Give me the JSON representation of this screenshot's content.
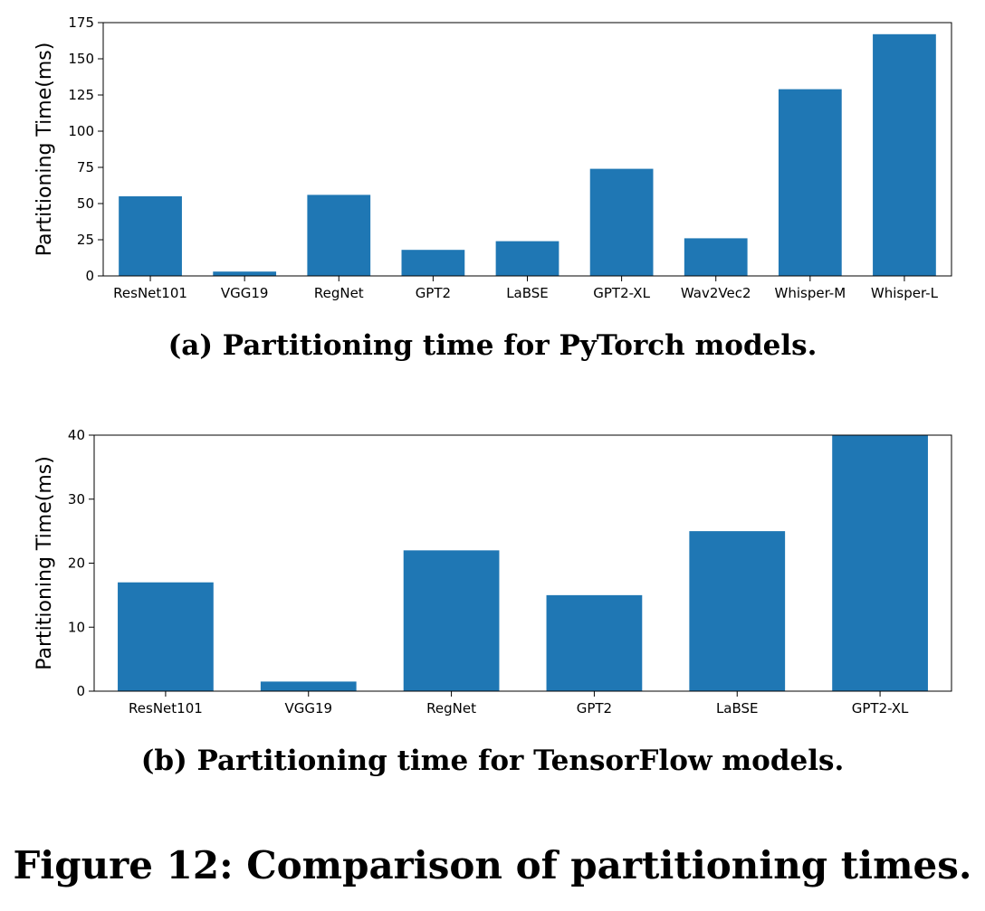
{
  "chart_data": [
    {
      "type": "bar",
      "categories": [
        "ResNet101",
        "VGG19",
        "RegNet",
        "GPT2",
        "LaBSE",
        "GPT2-XL",
        "Wav2Vec2",
        "Whisper-M",
        "Whisper-L"
      ],
      "values": [
        55,
        3,
        56,
        18,
        24,
        74,
        26,
        129,
        167
      ],
      "ylabel": "Partitioning Time(ms)",
      "ylim": [
        0,
        175
      ],
      "yticks": [
        0,
        25,
        50,
        75,
        100,
        125,
        150,
        175
      ],
      "grid": false,
      "color": "#1f77b4"
    },
    {
      "type": "bar",
      "categories": [
        "ResNet101",
        "VGG19",
        "RegNet",
        "GPT2",
        "LaBSE",
        "GPT2-XL"
      ],
      "values": [
        17,
        1.5,
        22,
        15,
        25,
        40
      ],
      "ylabel": "Partitioning Time(ms)",
      "ylim": [
        0,
        40
      ],
      "yticks": [
        0,
        10,
        20,
        30,
        40
      ],
      "grid": false,
      "color": "#1f77b4"
    }
  ],
  "captions": {
    "a": "(a) Partitioning time for PyTorch models.",
    "b": "(b) Partitioning time for TensorFlow models.",
    "figure": "Figure 12: Comparison of partitioning times."
  }
}
